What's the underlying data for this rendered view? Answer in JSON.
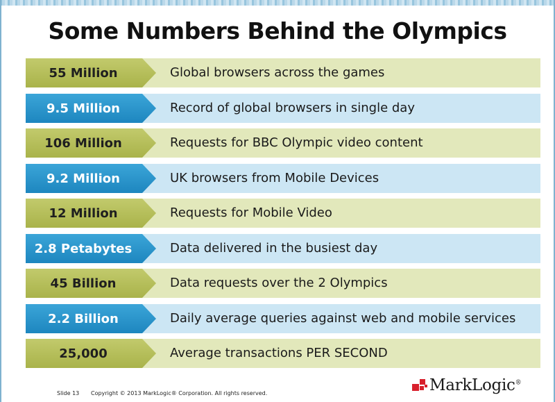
{
  "title": "Some Numbers Behind the Olympics",
  "colors": {
    "olive_tag": "#b0b955",
    "olive_bar": "#e2e8bb",
    "blue_tag": "#2a96cc",
    "blue_bar": "#cce6f4",
    "logo_red": "#d8202c"
  },
  "rows": [
    {
      "value": "55 Million",
      "description": "Global browsers across the games",
      "style": "olive"
    },
    {
      "value": "9.5 Million",
      "description": "Record of global browsers in single day",
      "style": "blue"
    },
    {
      "value": "106 Million",
      "description": "Requests for BBC Olympic video content",
      "style": "olive"
    },
    {
      "value": "9.2 Million",
      "description": "UK browsers from Mobile Devices",
      "style": "blue"
    },
    {
      "value": "12 Million",
      "description": "Requests for Mobile Video",
      "style": "olive"
    },
    {
      "value": "2.8 Petabytes",
      "description": "Data delivered in the busiest day",
      "style": "blue"
    },
    {
      "value": "45 Billion",
      "description": "Data requests over the 2 Olympics",
      "style": "olive"
    },
    {
      "value": "2.2 Billion",
      "description": "Daily average queries against web and mobile services",
      "style": "blue"
    },
    {
      "value": "25,000",
      "description": "Average transactions PER SECOND",
      "style": "olive"
    }
  ],
  "footer": {
    "slide": "Slide 13",
    "copyright": "Copyright © 2013 MarkLogic® Corporation. All rights reserved."
  },
  "logo": {
    "text": "MarkLogic",
    "reg": "®",
    "icon": "marklogic-squares-icon"
  }
}
